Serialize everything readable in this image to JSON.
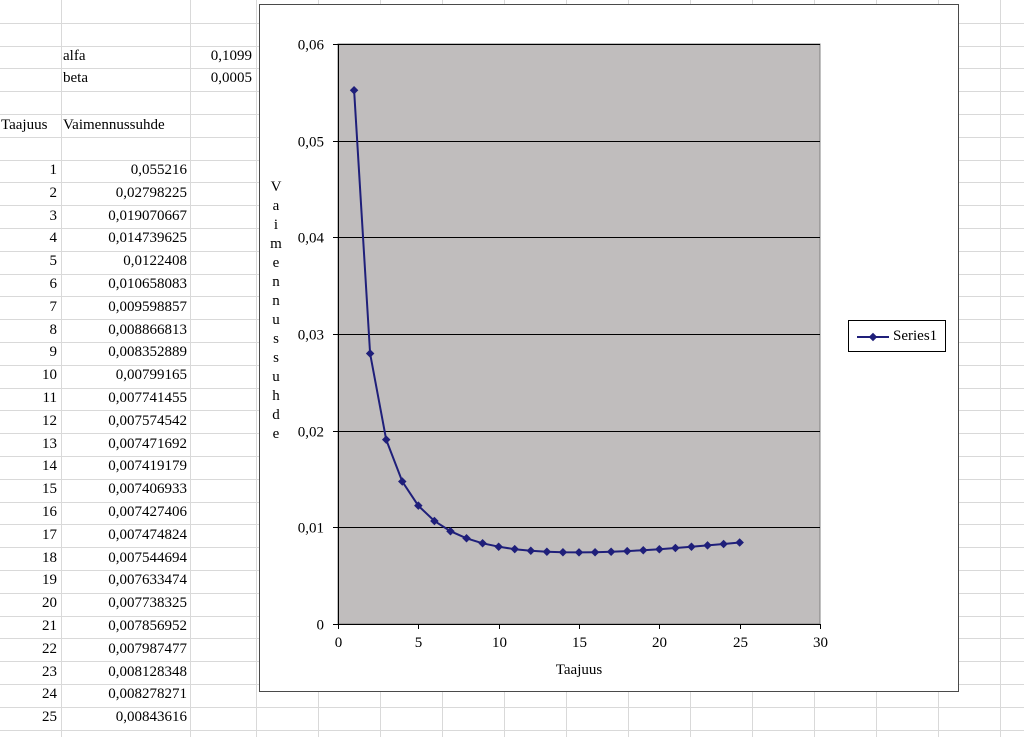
{
  "sheet": {
    "params": [
      {
        "name": "alfa",
        "value": "0,1099"
      },
      {
        "name": "beta",
        "value": "0,0005"
      }
    ],
    "headers": {
      "col1": "Taajuus",
      "col2": "Vaimennussuhde"
    },
    "rows": [
      {
        "taajuus": "1",
        "vaimennus": "0,055216"
      },
      {
        "taajuus": "2",
        "vaimennus": "0,02798225"
      },
      {
        "taajuus": "3",
        "vaimennus": "0,019070667"
      },
      {
        "taajuus": "4",
        "vaimennus": "0,014739625"
      },
      {
        "taajuus": "5",
        "vaimennus": "0,0122408"
      },
      {
        "taajuus": "6",
        "vaimennus": "0,010658083"
      },
      {
        "taajuus": "7",
        "vaimennus": "0,009598857"
      },
      {
        "taajuus": "8",
        "vaimennus": "0,008866813"
      },
      {
        "taajuus": "9",
        "vaimennus": "0,008352889"
      },
      {
        "taajuus": "10",
        "vaimennus": "0,00799165"
      },
      {
        "taajuus": "11",
        "vaimennus": "0,007741455"
      },
      {
        "taajuus": "12",
        "vaimennus": "0,007574542"
      },
      {
        "taajuus": "13",
        "vaimennus": "0,007471692"
      },
      {
        "taajuus": "14",
        "vaimennus": "0,007419179"
      },
      {
        "taajuus": "15",
        "vaimennus": "0,007406933"
      },
      {
        "taajuus": "16",
        "vaimennus": "0,007427406"
      },
      {
        "taajuus": "17",
        "vaimennus": "0,007474824"
      },
      {
        "taajuus": "18",
        "vaimennus": "0,007544694"
      },
      {
        "taajuus": "19",
        "vaimennus": "0,007633474"
      },
      {
        "taajuus": "20",
        "vaimennus": "0,007738325"
      },
      {
        "taajuus": "21",
        "vaimennus": "0,007856952"
      },
      {
        "taajuus": "22",
        "vaimennus": "0,007987477"
      },
      {
        "taajuus": "23",
        "vaimennus": "0,008128348"
      },
      {
        "taajuus": "24",
        "vaimennus": "0,008278271"
      },
      {
        "taajuus": "25",
        "vaimennus": "0,00843616"
      }
    ]
  },
  "chart_data": {
    "type": "line",
    "xlabel": "Taajuus",
    "ylabel": "Vaimennussuhde",
    "xlim": [
      0,
      30
    ],
    "ylim": [
      0,
      0.06
    ],
    "xticks": [
      "0",
      "5",
      "10",
      "15",
      "20",
      "25",
      "30"
    ],
    "yticks": [
      "0",
      "0,01",
      "0,02",
      "0,03",
      "0,04",
      "0,05",
      "0,06"
    ],
    "grid": "horizontal major gridlines",
    "plot_background": "#c0bdbd",
    "legend_position": "right",
    "series": [
      {
        "name": "Series1",
        "color": "#1f1f7a",
        "marker": "diamond",
        "x": [
          1,
          2,
          3,
          4,
          5,
          6,
          7,
          8,
          9,
          10,
          11,
          12,
          13,
          14,
          15,
          16,
          17,
          18,
          19,
          20,
          21,
          22,
          23,
          24,
          25
        ],
        "y": [
          0.055216,
          0.02798225,
          0.019070667,
          0.014739625,
          0.0122408,
          0.010658083,
          0.009598857,
          0.008866813,
          0.008352889,
          0.00799165,
          0.007741455,
          0.007574542,
          0.007471692,
          0.007419179,
          0.007406933,
          0.007427406,
          0.007474824,
          0.007544694,
          0.007633474,
          0.007738325,
          0.007856952,
          0.007987477,
          0.008128348,
          0.008278271,
          0.00843616
        ]
      }
    ]
  }
}
